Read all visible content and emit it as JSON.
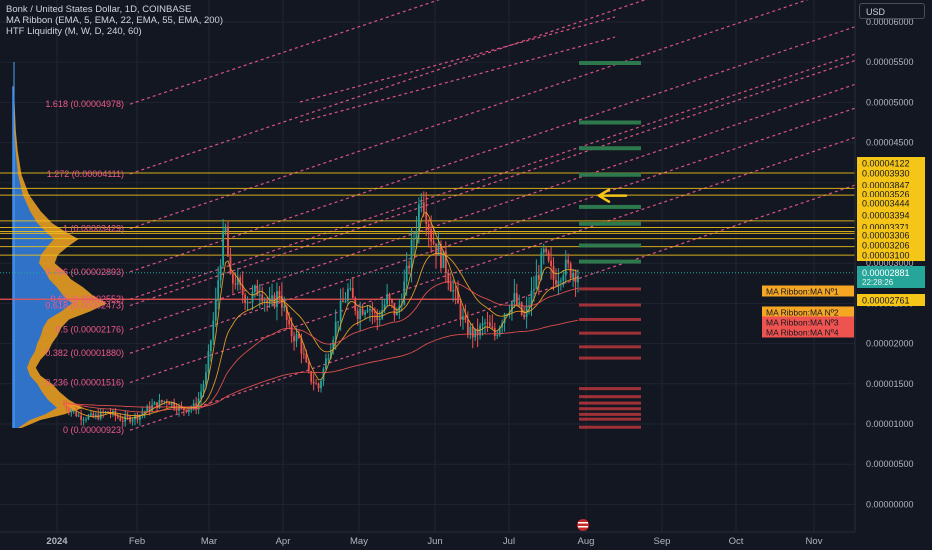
{
  "legend": {
    "symbol_line": "Bonk / United States Dollar, 1D, COINBASE",
    "indicator_1": "MA Ribbon (EMA, 5, EMA, 22, EMA, 55, EMA, 200)",
    "indicator_2": "HTF Liquidity (M, W, D, 240, 60)"
  },
  "currency_button": "USD",
  "colors": {
    "background": "#131722",
    "up": "#26a69a",
    "down": "#ef5350",
    "fib": "#f05a8c",
    "level": "#f5c518",
    "profile": "#f5a623",
    "profile_blue": "#1e6fd9",
    "price_tag": "#26a69a",
    "arrow": "#f5c518"
  },
  "chart_data": {
    "type": "candlestick",
    "title": "Bonk / United States Dollar, 1D, COINBASE",
    "y_axis_ticks": [
      "0.00006000",
      "0.00005500",
      "0.00005000",
      "0.00004500",
      "0.00004000",
      "0.00003500",
      "0.00003000",
      "0.00002500",
      "0.00002000",
      "0.00001500",
      "0.00001000",
      "0.00000500",
      "0.00000000"
    ],
    "y_tick_values": [
      6e-05,
      5.5e-05,
      5e-05,
      4.5e-05,
      4e-05,
      3.5e-05,
      3e-05,
      2.5e-05,
      2e-05,
      1.5e-05,
      1e-05,
      5e-06,
      0
    ],
    "x_axis_ticks": [
      "2024",
      "Feb",
      "Mar",
      "Apr",
      "May",
      "Jun",
      "Jul",
      "Aug",
      "Sep",
      "Oct",
      "Nov"
    ],
    "ylim": [
      -1.5e-06,
      6.55e-05
    ],
    "grid": true,
    "fib_levels": [
      {
        "label": "1.618 (0.00004978)",
        "value": 4.978e-05
      },
      {
        "label": "1.272 (0.00004111)",
        "value": 4.111e-05
      },
      {
        "label": "1 (0.00003429)",
        "value": 3.429e-05
      },
      {
        "label": "0.786 (0.00002893)",
        "value": 2.893e-05
      },
      {
        "label": "0.65 (0.00002552)",
        "value": 2.552e-05
      },
      {
        "label": "0.618 (0.00002473)",
        "value": 2.473e-05
      },
      {
        "label": "0.5 (0.00002176)",
        "value": 2.176e-05
      },
      {
        "label": "0.382 (0.00001880)",
        "value": 1.88e-05
      },
      {
        "label": "0.236 (0.00001516)",
        "value": 1.516e-05
      },
      {
        "label": "0 (0.00000923)",
        "value": 9.23e-06
      }
    ],
    "horizontal_levels": [
      {
        "label": "0.00004122",
        "value": 4.122e-05
      },
      {
        "label": "0.00003930",
        "value": 3.93e-05
      },
      {
        "label": "0.00003847",
        "value": 3.847e-05
      },
      {
        "label": "0.00003526",
        "value": 3.526e-05
      },
      {
        "label": "0.00003444",
        "value": 3.444e-05
      },
      {
        "label": "0.00003394",
        "value": 3.394e-05
      },
      {
        "label": "0.00003371",
        "value": 3.371e-05
      },
      {
        "label": "0.00003306",
        "value": 3.306e-05
      },
      {
        "label": "0.00003206",
        "value": 3.206e-05
      },
      {
        "label": "0.00003100",
        "value": 3.1e-05
      }
    ],
    "last_price": {
      "value": "0.00002881",
      "value_num": 2.881e-05,
      "countdown": "22:28:26"
    },
    "support_level": {
      "label": "0.00002761",
      "value": 2.761e-05
    },
    "ma_labels": [
      {
        "label": "MA Ribbon:MA Nº1",
        "value": 2.62e-05,
        "color": "#f5a623"
      },
      {
        "label": "MA Ribbon:MA Nº2",
        "value": 2.35e-05,
        "color": "#f5a623"
      },
      {
        "label": "MA Ribbon:MA Nº3",
        "value": 2.21e-05,
        "color": "#ef5350"
      },
      {
        "label": "MA Ribbon:MA Nº4",
        "value": 2.07e-05,
        "color": "#ef5350"
      }
    ],
    "price_path": [
      [
        0,
        1.25e-05
      ],
      [
        6,
        1.1e-05
      ],
      [
        12,
        1.08e-05
      ],
      [
        18,
        1.15e-05
      ],
      [
        24,
        1.05e-05
      ],
      [
        30,
        1.1e-05
      ],
      [
        36,
        1.22e-05
      ],
      [
        42,
        1.3e-05
      ],
      [
        48,
        1.18e-05
      ],
      [
        54,
        1.22e-05
      ],
      [
        58,
        1.6e-05
      ],
      [
        62,
        2.5e-05
      ],
      [
        64,
        3.1e-05
      ],
      [
        66,
        3.4e-05
      ],
      [
        68,
        2.75e-05
      ],
      [
        70,
        2.8e-05
      ],
      [
        72,
        2.65e-05
      ],
      [
        76,
        2.55e-05
      ],
      [
        80,
        2.7e-05
      ],
      [
        84,
        2.45e-05
      ],
      [
        88,
        2.65e-05
      ],
      [
        92,
        2.15e-05
      ],
      [
        96,
        2.05e-05
      ],
      [
        100,
        1.6e-05
      ],
      [
        104,
        1.45e-05
      ],
      [
        108,
        1.9e-05
      ],
      [
        112,
        2.35e-05
      ],
      [
        116,
        2.65e-05
      ],
      [
        120,
        2.4e-05
      ],
      [
        124,
        2.5e-05
      ],
      [
        128,
        2.3e-05
      ],
      [
        132,
        2.55e-05
      ],
      [
        136,
        2.35e-05
      ],
      [
        140,
        2.85e-05
      ],
      [
        144,
        3.5e-05
      ],
      [
        146,
        3.9e-05
      ],
      [
        148,
        3.65e-05
      ],
      [
        150,
        3.35e-05
      ],
      [
        152,
        3.2e-05
      ],
      [
        156,
        2.95e-05
      ],
      [
        160,
        2.55e-05
      ],
      [
        164,
        2.2e-05
      ],
      [
        168,
        2.1e-05
      ],
      [
        172,
        2.25e-05
      ],
      [
        176,
        2.1e-05
      ],
      [
        180,
        2.4e-05
      ],
      [
        184,
        2.55e-05
      ],
      [
        188,
        2.3e-05
      ],
      [
        192,
        2.7e-05
      ],
      [
        196,
        3.1e-05
      ],
      [
        200,
        2.8e-05
      ],
      [
        204,
        2.95e-05
      ],
      [
        210,
        2.881e-05
      ]
    ],
    "volume_profile": [
      [
        5.2e-05,
        0.02
      ],
      [
        4.65e-05,
        0.04
      ],
      [
        4.4e-05,
        0.06
      ],
      [
        4.1e-05,
        0.1
      ],
      [
        3.85e-05,
        0.18
      ],
      [
        3.65e-05,
        0.3
      ],
      [
        3.5e-05,
        0.42
      ],
      [
        3.4e-05,
        0.55
      ],
      [
        3.3e-05,
        0.7
      ],
      [
        3.2e-05,
        0.58
      ],
      [
        3.1e-05,
        0.48
      ],
      [
        3e-05,
        0.45
      ],
      [
        2.9e-05,
        0.55
      ],
      [
        2.8e-05,
        0.62
      ],
      [
        2.7e-05,
        0.75
      ],
      [
        2.6e-05,
        0.85
      ],
      [
        2.5e-05,
        1.0
      ],
      [
        2.4e-05,
        0.82
      ],
      [
        2.3e-05,
        0.6
      ],
      [
        2.2e-05,
        0.52
      ],
      [
        2.1e-05,
        0.48
      ],
      [
        2e-05,
        0.42
      ],
      [
        1.9e-05,
        0.38
      ],
      [
        1.8e-05,
        0.3
      ],
      [
        1.7e-05,
        0.25
      ],
      [
        1.6e-05,
        0.3
      ],
      [
        1.5e-05,
        0.42
      ],
      [
        1.4e-05,
        0.5
      ],
      [
        1.3e-05,
        0.6
      ],
      [
        1.2e-05,
        0.75
      ],
      [
        1.12e-05,
        0.55
      ],
      [
        1.05e-05,
        0.3
      ],
      [
        9.5e-06,
        0.1
      ]
    ],
    "liquidity_blocks_above": [
      5.49e-05,
      4.75e-05,
      4.43e-05,
      4.1e-05,
      3.7e-05,
      3.49e-05,
      3.22e-05,
      3.02e-05
    ],
    "liquidity_blocks_below": [
      2.68e-05,
      2.48e-05,
      2.3e-05,
      2.13e-05,
      1.96e-05,
      1.82e-05,
      1.44e-05,
      1.34e-05,
      1.26e-05,
      1.19e-05,
      1.12e-05,
      1.06e-05,
      9.6e-06
    ]
  }
}
